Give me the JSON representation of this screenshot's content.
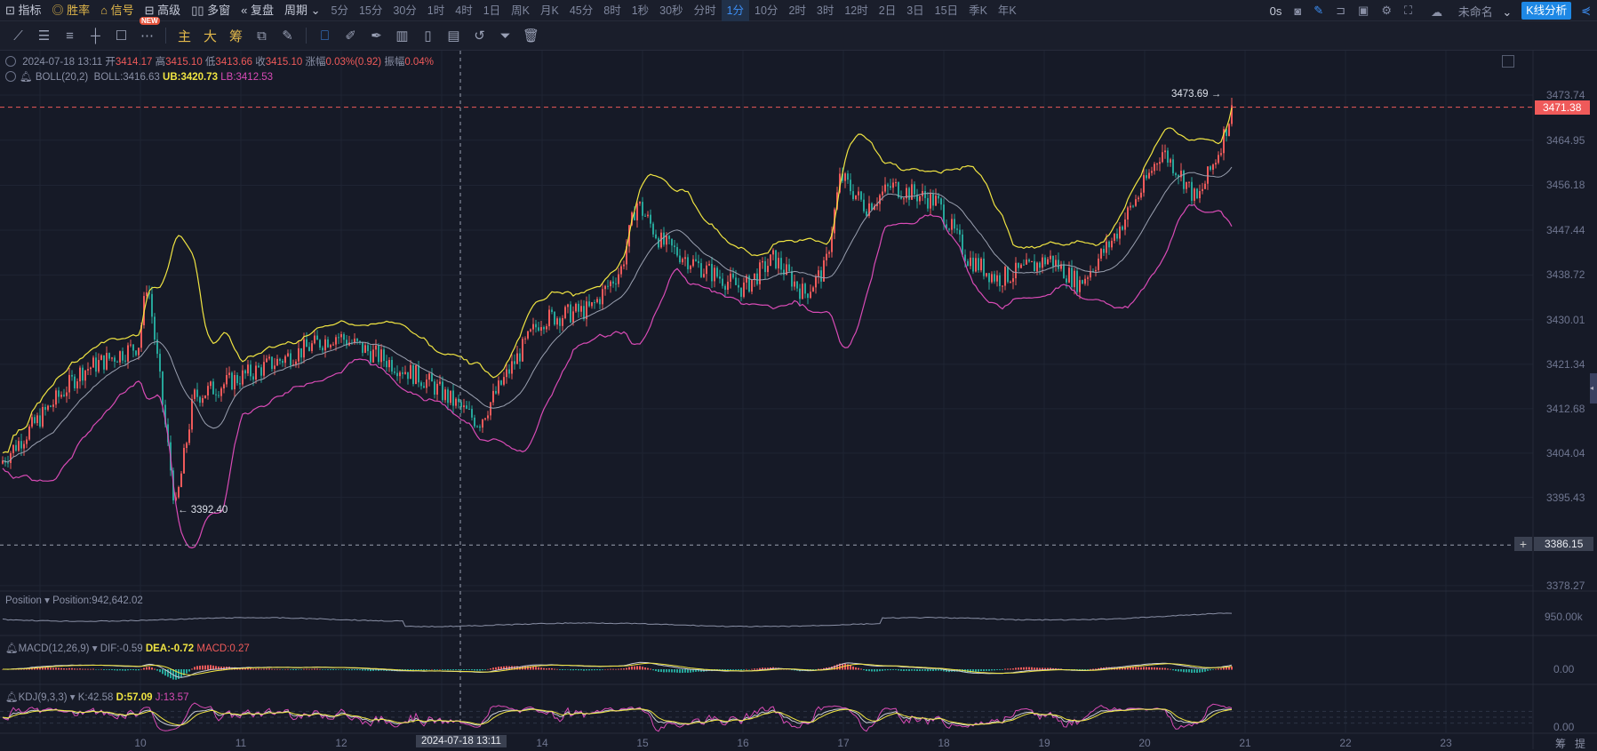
{
  "toolbar": {
    "items": [
      {
        "icon": "indicator-icon",
        "label": "指标"
      },
      {
        "icon": "win-rate-icon",
        "label": "胜率"
      },
      {
        "icon": "signal-icon",
        "label": "信号"
      },
      {
        "icon": "advanced-icon",
        "label": "高级"
      },
      {
        "icon": "multi-window-icon",
        "label": "多窗"
      },
      {
        "icon": "replay-icon",
        "label": "复盘"
      }
    ],
    "period_label": "周期",
    "periods": [
      "5分",
      "15分",
      "30分",
      "1时",
      "4时",
      "1日",
      "周K",
      "月K",
      "45分",
      "8时",
      "1秒",
      "30秒",
      "分时",
      "1分",
      "10分",
      "2时",
      "3时",
      "12时",
      "2日",
      "3日",
      "15日",
      "季K",
      "年K"
    ],
    "active_period": "1分",
    "countdown": "0s",
    "layout_name": "未命名",
    "kline_button": "K线分析"
  },
  "drawing_toolbar": {
    "new_badge": "NEW",
    "chars": [
      "主",
      "大",
      "筹"
    ]
  },
  "info": {
    "datetime": "2024-07-18 13:11",
    "open_label": "开",
    "open": "3414.17",
    "high_label": "高",
    "high": "3415.10",
    "low_label": "低",
    "low": "3413.66",
    "close_label": "收",
    "close": "3415.10",
    "change_label": "涨幅",
    "change": "0.03%(0.92)",
    "amp_label": "振幅",
    "amp": "0.04%"
  },
  "boll": {
    "name": "BOLL(20,2)",
    "mid": "BOLL:3416.63",
    "ub": "UB:3420.73",
    "lb": "LB:3412.53"
  },
  "position": {
    "name": "Position",
    "value": "Position:942,642.02",
    "axis": "950.00k"
  },
  "macd": {
    "name": "MACD(12,26,9)",
    "dif": "DIF:-0.59",
    "dea": "DEA:-0.72",
    "macd": "MACD:0.27",
    "axis": "0.00"
  },
  "kdj": {
    "name": "KDJ(9,3,3)",
    "k": "K:42.58",
    "d": "D:57.09",
    "j": "J:13.57",
    "axis": "0.00"
  },
  "price_axis": [
    "3473.74",
    "3464.95",
    "3456.18",
    "3447.44",
    "3438.72",
    "3430.01",
    "3421.34",
    "3412.68",
    "3404.04",
    "3395.43",
    "3378.27"
  ],
  "last_price": "3471.38",
  "crosshair_price": "3386.15",
  "crosshair_time": "2024-07-18 13:11",
  "max_marker": "3473.69 →",
  "min_marker": "← 3392.40",
  "x_axis": [
    "10",
    "11",
    "12",
    "14",
    "15",
    "16",
    "17",
    "18",
    "19",
    "20",
    "21",
    "22",
    "23"
  ],
  "corner_labels": [
    "筹",
    "提"
  ],
  "colors": {
    "up": "#ef5a5a",
    "down": "#26a69a",
    "ub": "#f0e442",
    "lb": "#d94bb6",
    "mid": "#9aa0b0"
  },
  "chart_data": {
    "type": "candlestick",
    "ylim": [
      3375,
      3476
    ],
    "x_unit": "day of July 2024",
    "price_path": [
      [
        8.6,
        3402
      ],
      [
        9.41,
        3420
      ],
      [
        9.98,
        3425
      ],
      [
        10.07,
        3438
      ],
      [
        10.35,
        3393
      ],
      [
        10.53,
        3415
      ],
      [
        11.14,
        3420
      ],
      [
        11.95,
        3427
      ],
      [
        12.46,
        3422
      ],
      [
        12.86,
        3418
      ],
      [
        13.37,
        3410
      ],
      [
        13.67,
        3420
      ],
      [
        13.98,
        3430
      ],
      [
        14.48,
        3432
      ],
      [
        14.79,
        3440
      ],
      [
        14.94,
        3453
      ],
      [
        15.19,
        3445
      ],
      [
        15.6,
        3440
      ],
      [
        16.0,
        3436
      ],
      [
        16.31,
        3442
      ],
      [
        16.61,
        3435
      ],
      [
        16.82,
        3440
      ],
      [
        16.97,
        3458
      ],
      [
        17.22,
        3452
      ],
      [
        17.48,
        3456
      ],
      [
        17.93,
        3453
      ],
      [
        18.24,
        3442
      ],
      [
        18.54,
        3438
      ],
      [
        18.85,
        3440
      ],
      [
        19.05,
        3442
      ],
      [
        19.35,
        3437
      ],
      [
        19.66,
        3445
      ],
      [
        19.96,
        3455
      ],
      [
        20.17,
        3463
      ],
      [
        20.37,
        3458
      ],
      [
        20.52,
        3453
      ],
      [
        20.72,
        3462
      ],
      [
        20.89,
        3472
      ]
    ]
  }
}
